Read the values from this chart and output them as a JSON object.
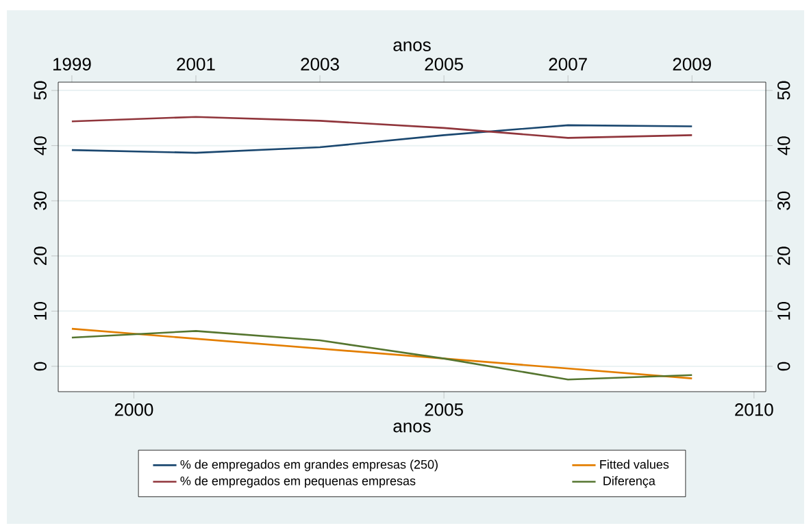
{
  "chart_data": {
    "type": "line",
    "xlabel": "anos",
    "x2label": "anos",
    "xlim": [
      1998.78,
      2010.19
    ],
    "xticks": [
      2000,
      2005,
      2010
    ],
    "x2lim": [
      1998.78,
      2010.19
    ],
    "x2ticks": [
      1999,
      2001,
      2003,
      2005,
      2007,
      2009
    ],
    "ylim": [
      -4.6,
      51.5
    ],
    "yticks": [
      0,
      10,
      20,
      30,
      40,
      50
    ],
    "y2lim": [
      -4.6,
      51.5
    ],
    "y2ticks": [
      0,
      10,
      20,
      30,
      40,
      50
    ],
    "grid": "y",
    "legend": "bottom",
    "series": [
      {
        "name": "% de empregados em grandes empresas (250)",
        "color": "#1a476f",
        "x": [
          1999,
          2001,
          2003,
          2005,
          2007,
          2009
        ],
        "values": [
          39.2,
          38.7,
          39.7,
          41.9,
          43.7,
          43.5
        ]
      },
      {
        "name": "Fitted values",
        "color": "#e37e00",
        "x": [
          1999,
          2009
        ],
        "values": [
          6.8,
          -2.2
        ]
      },
      {
        "name": "% de empregados em pequenas empresas",
        "color": "#90353b",
        "x": [
          1999,
          2001,
          2003,
          2005,
          2007,
          2009
        ],
        "values": [
          44.4,
          45.2,
          44.5,
          43.2,
          41.4,
          41.9
        ]
      },
      {
        "name": " Diferença",
        "color": "#55752f",
        "x": [
          1999,
          2001,
          2003,
          2005,
          2007,
          2009
        ],
        "values": [
          5.2,
          6.4,
          4.7,
          1.4,
          -2.4,
          -1.6
        ]
      }
    ]
  }
}
